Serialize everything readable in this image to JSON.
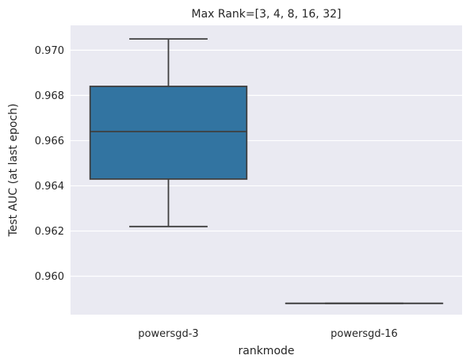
{
  "chart_data": {
    "type": "box",
    "title": "Max Rank=[3, 4, 8, 16, 32]",
    "xlabel": "rankmode",
    "ylabel": "Test AUC (at last epoch)",
    "ylim": [
      0.9583,
      0.9711
    ],
    "yticks": [
      0.96,
      0.962,
      0.964,
      0.966,
      0.968,
      0.97
    ],
    "ytick_labels": [
      "0.960",
      "0.962",
      "0.964",
      "0.966",
      "0.968",
      "0.970"
    ],
    "grid": true,
    "categories": [
      "powersgd-3",
      "powersgd-16"
    ],
    "boxes": [
      {
        "category": "powersgd-3",
        "whisker_low": 0.9622,
        "q1": 0.9643,
        "median": 0.9664,
        "q3": 0.9684,
        "whisker_high": 0.9705,
        "color": "#3274a1"
      },
      {
        "category": "powersgd-16",
        "whisker_low": 0.9588,
        "q1": 0.9588,
        "median": 0.9588,
        "q3": 0.9588,
        "whisker_high": 0.9588,
        "color": "#e1812c"
      }
    ]
  },
  "colors": {
    "background": "#eaeaf2",
    "grid": "#ffffff",
    "lines": "#3f3f3f",
    "text": "#262626"
  }
}
